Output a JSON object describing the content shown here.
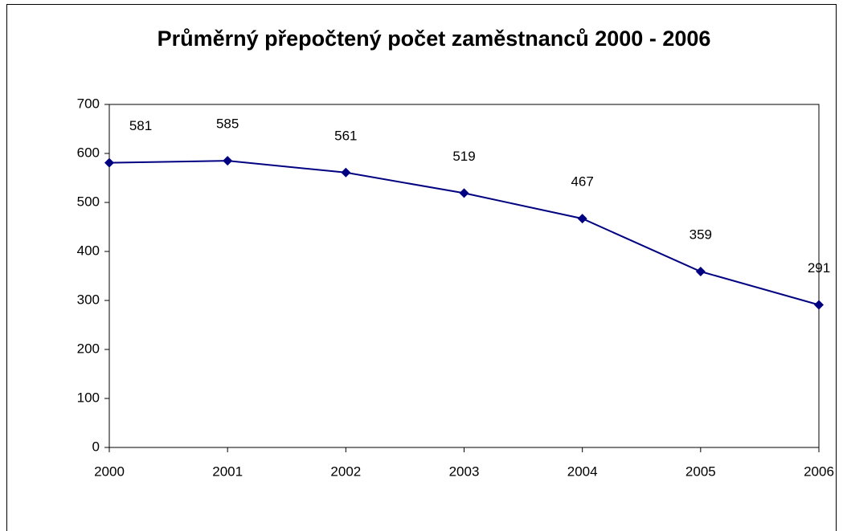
{
  "chart_data": {
    "type": "line",
    "title": "Průměrný přepočtený počet zaměstnanců 2000 - 2006",
    "categories": [
      "2000",
      "2001",
      "2002",
      "2003",
      "2004",
      "2005",
      "2006"
    ],
    "values": [
      581,
      585,
      561,
      519,
      467,
      359,
      291
    ],
    "color": "#000080",
    "ylim": [
      0,
      700
    ],
    "yticks": [
      0,
      100,
      200,
      300,
      400,
      500,
      600,
      700
    ],
    "grid": false
  }
}
